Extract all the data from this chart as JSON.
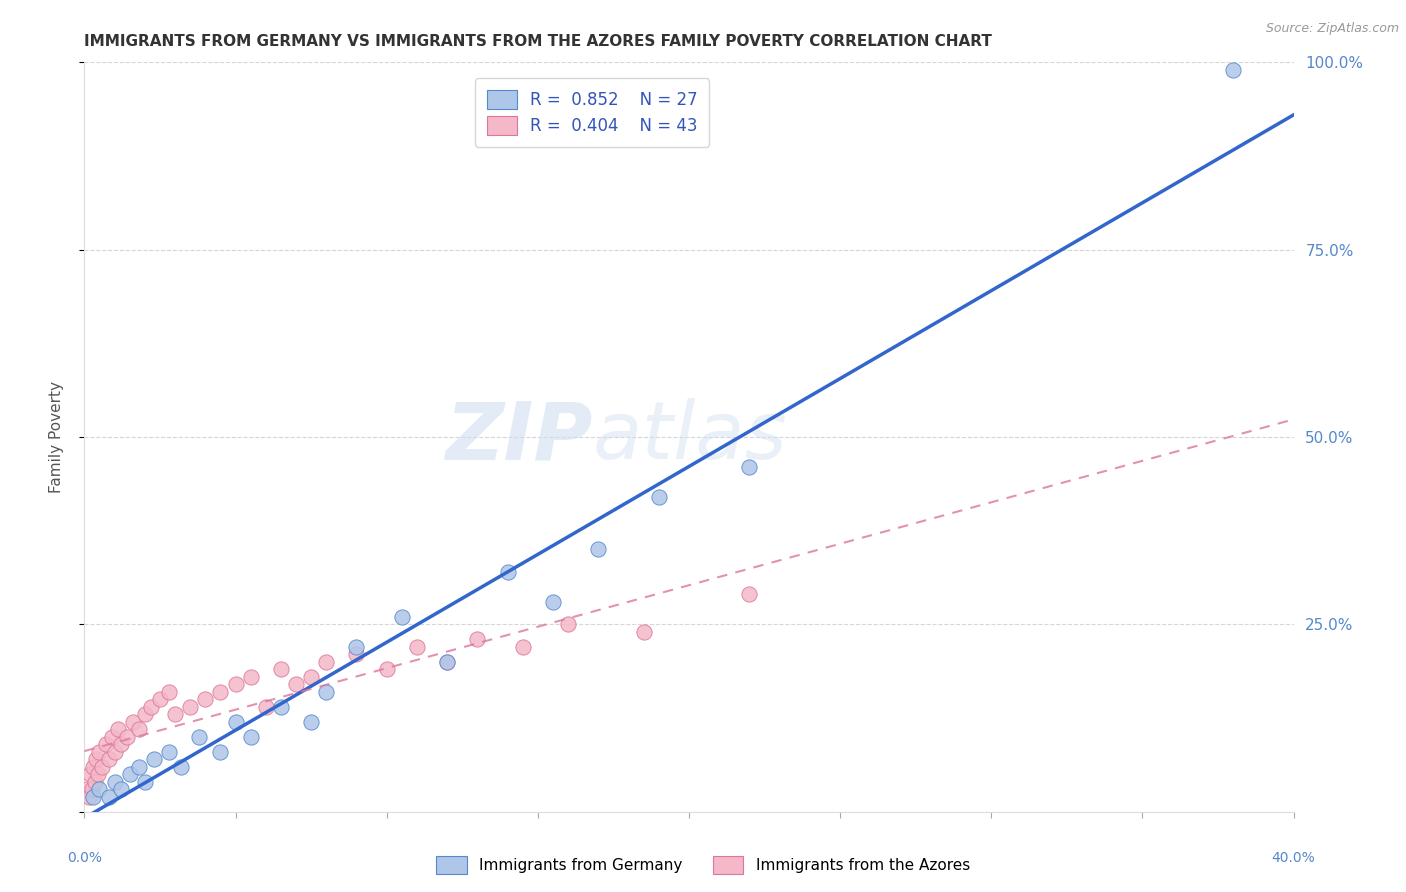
{
  "title": "IMMIGRANTS FROM GERMANY VS IMMIGRANTS FROM THE AZORES FAMILY POVERTY CORRELATION CHART",
  "source": "Source: ZipAtlas.com",
  "ylabel": "Family Poverty",
  "xlim": [
    0,
    40
  ],
  "ylim": [
    0,
    100
  ],
  "watermark_zip": "ZIP",
  "watermark_atlas": "atlas",
  "germany_color": "#aec6e8",
  "azores_color": "#f4b8c8",
  "germany_edge": "#5588cc",
  "azores_edge": "#dd7799",
  "regression_germany_color": "#3366cc",
  "regression_azores_color": "#dd7799",
  "background_color": "#ffffff",
  "legend_r1_text": "R =  0.852    N = 27",
  "legend_r2_text": "R =  0.404    N = 43",
  "germany_x": [
    0.3,
    0.5,
    0.8,
    1.0,
    1.2,
    1.5,
    1.8,
    2.0,
    2.3,
    2.8,
    3.2,
    3.8,
    4.5,
    5.0,
    5.5,
    6.5,
    7.5,
    8.0,
    9.0,
    10.5,
    12.0,
    14.0,
    15.5,
    17.0,
    19.0,
    22.0,
    38.0
  ],
  "germany_y": [
    2,
    3,
    2,
    4,
    3,
    5,
    6,
    4,
    7,
    8,
    6,
    10,
    8,
    12,
    10,
    14,
    12,
    16,
    22,
    26,
    20,
    32,
    28,
    35,
    42,
    46,
    99
  ],
  "azores_x": [
    0.1,
    0.15,
    0.2,
    0.25,
    0.3,
    0.35,
    0.4,
    0.45,
    0.5,
    0.6,
    0.7,
    0.8,
    0.9,
    1.0,
    1.1,
    1.2,
    1.4,
    1.6,
    1.8,
    2.0,
    2.2,
    2.5,
    2.8,
    3.0,
    3.5,
    4.0,
    4.5,
    5.0,
    5.5,
    6.0,
    6.5,
    7.0,
    7.5,
    8.0,
    9.0,
    10.0,
    11.0,
    12.0,
    13.0,
    14.5,
    16.0,
    18.5,
    22.0
  ],
  "azores_y": [
    3,
    2,
    5,
    3,
    6,
    4,
    7,
    5,
    8,
    6,
    9,
    7,
    10,
    8,
    11,
    9,
    10,
    12,
    11,
    13,
    14,
    15,
    16,
    13,
    14,
    15,
    16,
    17,
    18,
    14,
    19,
    17,
    18,
    20,
    21,
    19,
    22,
    20,
    23,
    22,
    25,
    24,
    29
  ]
}
